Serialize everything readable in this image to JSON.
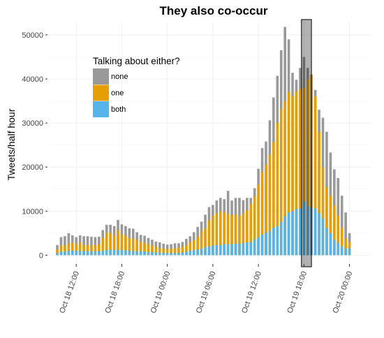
{
  "chart_data": {
    "type": "bar",
    "title": "They also co-occur",
    "ylabel": "Tweets/half hour",
    "xlabel": "",
    "ylim": [
      -2000,
      53000
    ],
    "y_ticks": [
      {
        "value": 0,
        "label": "0"
      },
      {
        "value": 10000,
        "label": "10000"
      },
      {
        "value": 20000,
        "label": "20000"
      },
      {
        "value": 30000,
        "label": "30000"
      },
      {
        "value": 40000,
        "label": "40000"
      },
      {
        "value": 50000,
        "label": "50000"
      }
    ],
    "x_ticks": [
      {
        "value": 12,
        "label": "Oct 18 12:00"
      },
      {
        "value": 18,
        "label": "Oct 18 18:00"
      },
      {
        "value": 24,
        "label": "Oct 19 00:00"
      },
      {
        "value": 30,
        "label": "Oct 19 06:00"
      },
      {
        "value": 36,
        "label": "Oct 19 12:00"
      },
      {
        "value": 42,
        "label": "Oct 19 18:00"
      },
      {
        "value": 48,
        "label": "Oct 20 00:00"
      }
    ],
    "x_start": 9.5,
    "x_step": 0.5,
    "bar_width": 0.33,
    "highlight": {
      "x0": 41.67,
      "x1": 42.99
    },
    "legend": {
      "title": "Talking about either?",
      "position": "top-left",
      "entries": [
        {
          "name": "none",
          "color": "#999999"
        },
        {
          "name": "one",
          "color": "#E69F00"
        },
        {
          "name": "both",
          "color": "#56B4E9"
        }
      ]
    },
    "series": [
      {
        "name": "none",
        "color": "#999999",
        "values": [
          2300,
          4100,
          4300,
          5000,
          4500,
          4100,
          4500,
          4300,
          4300,
          4200,
          4100,
          4200,
          5700,
          6900,
          6900,
          6600,
          8000,
          7000,
          6600,
          6100,
          6000,
          5200,
          4600,
          4400,
          3900,
          3500,
          3100,
          2900,
          2600,
          2400,
          2500,
          2700,
          2700,
          3000,
          3700,
          4300,
          5200,
          6400,
          7600,
          9200,
          10900,
          11400,
          12400,
          13000,
          12700,
          14600,
          12400,
          13000,
          13000,
          12500,
          13000,
          13000,
          15200,
          19600,
          24300,
          25800,
          30600,
          35800,
          40700,
          46500,
          51800,
          49000,
          41400,
          39800,
          42500,
          45000,
          42500,
          40000,
          37500,
          33000,
          31200,
          28000,
          23300,
          19500,
          17500,
          13500,
          9700,
          5000
        ]
      },
      {
        "name": "one",
        "color": "#E69F00",
        "values": [
          1300,
          2200,
          2200,
          2700,
          2800,
          2500,
          2900,
          2300,
          2300,
          2300,
          2300,
          2500,
          3900,
          5000,
          5100,
          4500,
          5700,
          4700,
          4400,
          3900,
          3800,
          3500,
          3000,
          2800,
          2400,
          2200,
          1900,
          1600,
          1500,
          1400,
          1500,
          1600,
          1700,
          1900,
          2300,
          2900,
          3400,
          4200,
          5400,
          6100,
          7900,
          9000,
          9500,
          9900,
          9800,
          9300,
          9100,
          9200,
          9000,
          9500,
          10200,
          11600,
          13300,
          16000,
          18800,
          20500,
          22800,
          25700,
          30000,
          33200,
          35000,
          37000,
          36100,
          37100,
          37700,
          38000,
          40000,
          41000,
          36000,
          28000,
          20000,
          15500,
          13500,
          11300,
          9000,
          6300,
          3800,
          3000
        ]
      },
      {
        "name": "both",
        "color": "#56B4E9",
        "values": [
          500,
          800,
          800,
          1000,
          1000,
          1000,
          1000,
          900,
          900,
          900,
          900,
          900,
          1000,
          1200,
          1200,
          1200,
          1200,
          1200,
          1100,
          1000,
          1000,
          900,
          900,
          800,
          700,
          700,
          600,
          600,
          500,
          500,
          500,
          500,
          500,
          600,
          800,
          1000,
          1100,
          1300,
          1500,
          1800,
          2000,
          2200,
          2300,
          2300,
          2500,
          2500,
          2500,
          2600,
          2600,
          2700,
          2900,
          3000,
          3600,
          4100,
          4700,
          5100,
          5500,
          6200,
          6600,
          7600,
          8800,
          9700,
          10000,
          10500,
          10600,
          12200,
          11200,
          10800,
          10600,
          9600,
          8400,
          6200,
          5000,
          3500,
          2800,
          2000,
          1500,
          1600
        ]
      }
    ]
  }
}
